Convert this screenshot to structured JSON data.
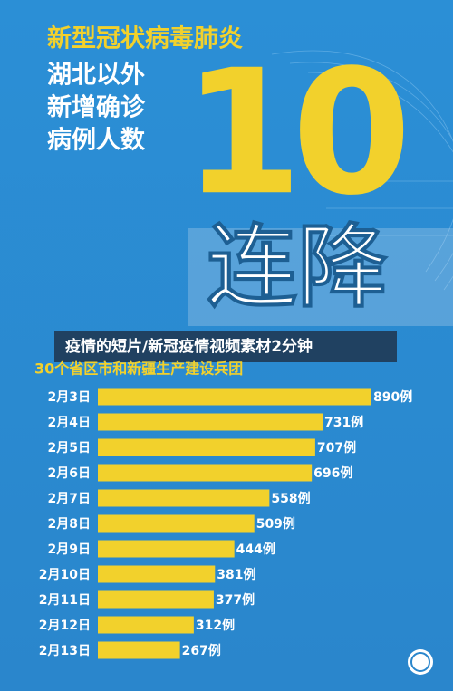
{
  "header": {
    "title": "新型冠状病毒肺炎",
    "lines": [
      "湖北以外",
      "新增确诊",
      "病例人数"
    ],
    "big_number": "10",
    "big_text": "连降"
  },
  "banner": "疫情的短片/新冠疫情视频素材2分钟",
  "chart_data": {
    "type": "bar",
    "orientation": "horizontal",
    "subtitle": "30个省区市和新疆生产建设兵团",
    "categories": [
      "2月3日",
      "2月4日",
      "2月5日",
      "2月6日",
      "2月7日",
      "2月8日",
      "2月9日",
      "2月10日",
      "2月11日",
      "2月12日",
      "2月13日"
    ],
    "values": [
      890,
      731,
      707,
      696,
      558,
      509,
      444,
      381,
      377,
      312,
      267
    ],
    "value_labels": [
      "890例",
      "731例",
      "707例",
      "696例",
      "558例",
      "509例",
      "444例",
      "381例",
      "377例",
      "312例",
      "267例"
    ],
    "color": "#f2d12c"
  }
}
